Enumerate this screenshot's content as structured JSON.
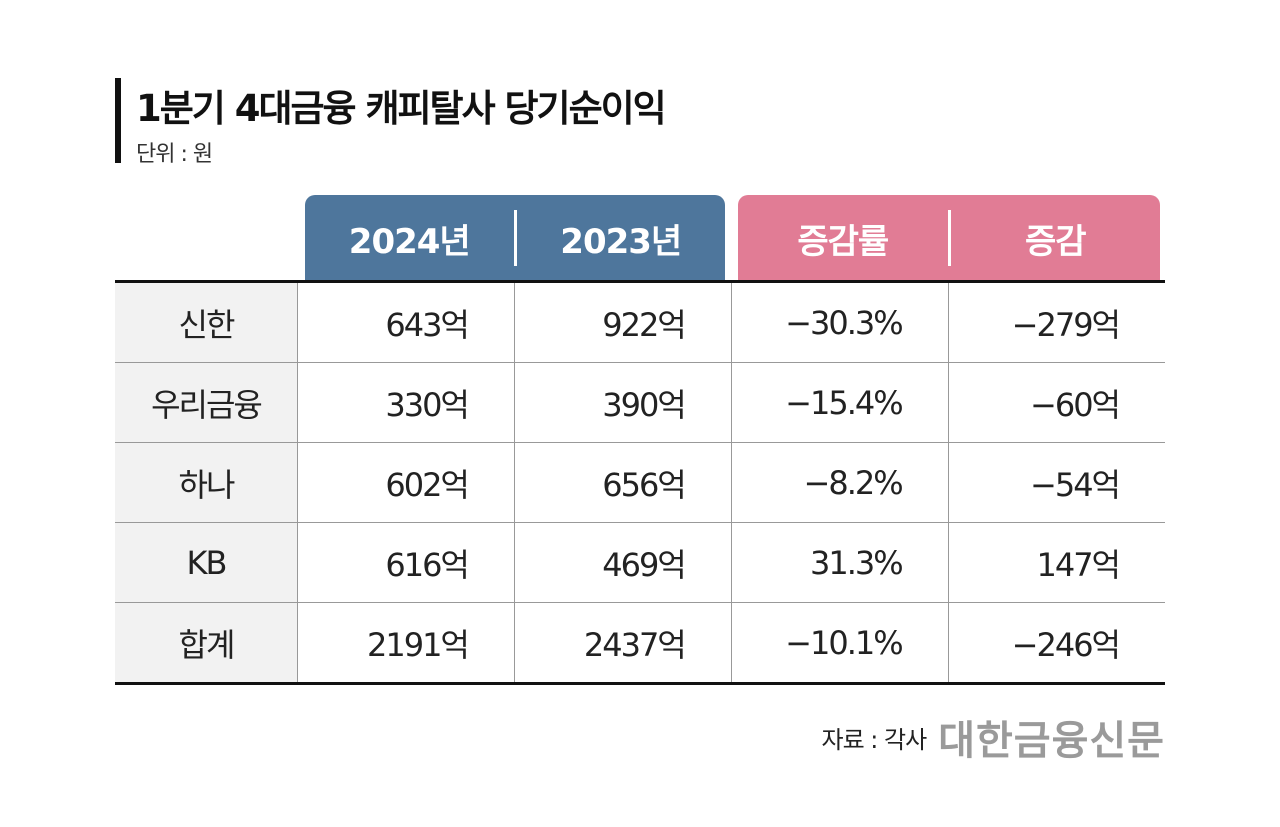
{
  "chart_data": {
    "type": "table",
    "title": "1분기 4대금융 캐피탈사 당기순이익",
    "unit": "단위 : 원",
    "columns": [
      "2024년",
      "2023년",
      "증감률",
      "증감"
    ],
    "rows": [
      {
        "label": "신한",
        "cells": [
          "643억",
          "922억",
          "−30.3%",
          "−279억"
        ]
      },
      {
        "label": "우리금융",
        "cells": [
          "330억",
          "390억",
          "−15.4%",
          "−60억"
        ]
      },
      {
        "label": "하나",
        "cells": [
          "602억",
          "656억",
          "−8.2%",
          "−54억"
        ]
      },
      {
        "label": "KB",
        "cells": [
          "616억",
          "469억",
          "31.3%",
          "147억"
        ]
      },
      {
        "label": "합계",
        "cells": [
          "2191억",
          "2437억",
          "−10.1%",
          "−246억"
        ]
      }
    ],
    "source": "자료 : 각사",
    "colors": {
      "year_header": "#4e769c",
      "change_header": "#e17c95"
    }
  },
  "logo": "대한금융신문"
}
